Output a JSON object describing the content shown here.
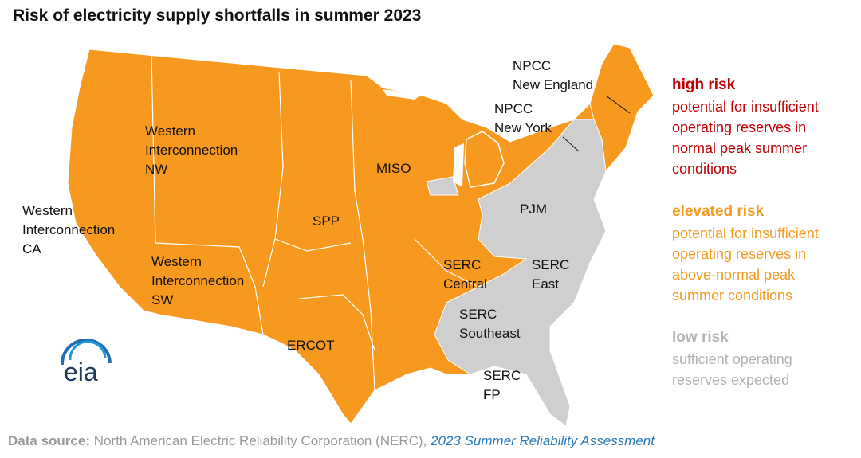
{
  "title": "Risk of electricity supply shortfalls in summer 2023",
  "regions": [
    {
      "label_lines": [
        "Western",
        "Interconnection",
        "NW"
      ]
    },
    {
      "label_lines": [
        "Western",
        "Interconnection",
        "CA"
      ]
    },
    {
      "label_lines": [
        "Western",
        "Interconnection",
        "SW"
      ]
    },
    {
      "label_lines": [
        "SPP"
      ]
    },
    {
      "label_lines": [
        "MISO"
      ]
    },
    {
      "label_lines": [
        "ERCOT"
      ]
    },
    {
      "label_lines": [
        "SERC",
        "Central"
      ]
    },
    {
      "label_lines": [
        "SERC",
        "East"
      ]
    },
    {
      "label_lines": [
        "PJM"
      ]
    },
    {
      "label_lines": [
        "SERC",
        "Southeast"
      ]
    },
    {
      "label_lines": [
        "SERC",
        "FP"
      ]
    },
    {
      "label_lines": [
        "NPCC",
        "New England"
      ]
    },
    {
      "label_lines": [
        "NPCC",
        "New York"
      ]
    }
  ],
  "legend": [
    {
      "heading": "high risk",
      "color": "#c00000",
      "description_lines": [
        "potential for insufficient",
        "operating reserves in",
        "normal peak summer",
        "conditions"
      ]
    },
    {
      "heading": "elevated risk",
      "color": "#f39a21",
      "description_lines": [
        "potential for insufficient",
        "operating reserves in",
        "above-normal peak",
        "summer conditions"
      ]
    },
    {
      "heading": "low risk",
      "color": "#b4b4b4",
      "description_lines": [
        "sufficient operating",
        "reserves expected"
      ]
    }
  ],
  "logo": "eia",
  "source": {
    "prefix": "Data source:",
    "text": "North American Electric Reliability Corporation (NERC),",
    "link": "2023 Summer Reliability Assessment"
  }
}
